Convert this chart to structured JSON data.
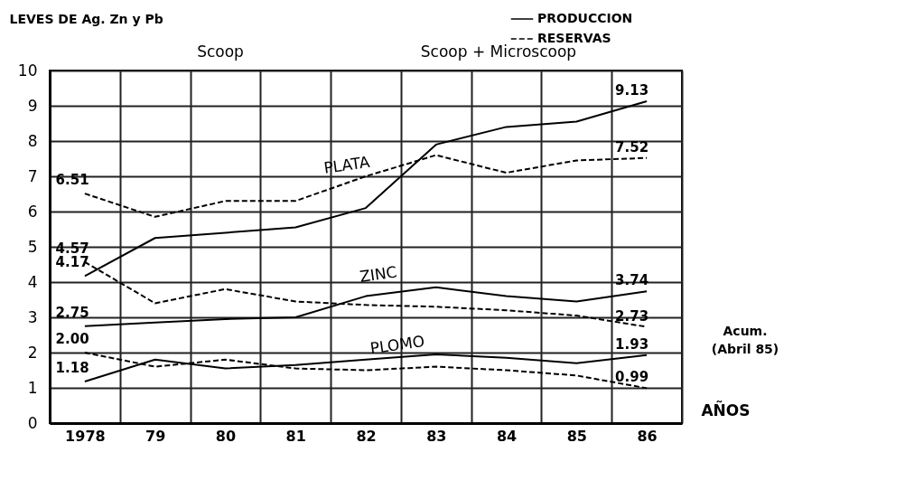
{
  "chart_data": {
    "type": "line",
    "ylabel": "LEVES DE Ag. Zn y Pb",
    "xlabel": "AÑOS",
    "categories": [
      "1978",
      "79",
      "80",
      "81",
      "82",
      "83",
      "84",
      "85",
      "86"
    ],
    "ylim": [
      0,
      10
    ],
    "yticks": [
      0,
      1,
      2,
      3,
      4,
      5,
      6,
      7,
      8,
      9,
      10
    ],
    "grid": true,
    "legend": "top right",
    "marker": "none",
    "series": [
      {
        "name": "PRODUCCION",
        "color": "#000000",
        "line_style": "solid",
        "values": [
          4.17,
          5.25,
          5.4,
          5.55,
          6.1,
          7.9,
          8.4,
          8.55,
          9.13
        ],
        "value_labels": [
          "4.17",
          null,
          null,
          null,
          null,
          null,
          null,
          null,
          "9.13"
        ]
      },
      {
        "name": "RESERVAS",
        "color": "#000000",
        "line_style": "dashed",
        "values": [
          6.51,
          5.85,
          6.3,
          6.3,
          7.0,
          7.6,
          7.1,
          7.45,
          7.52
        ],
        "value_labels": [
          "6.51",
          null,
          null,
          null,
          null,
          null,
          null,
          null,
          "7.52"
        ]
      },
      {
        "color": "#000000",
        "line_style": "solid",
        "values": [
          2.75,
          2.85,
          2.95,
          3.0,
          3.6,
          3.85,
          3.6,
          3.45,
          3.74
        ],
        "value_labels": [
          "2.75",
          null,
          null,
          null,
          null,
          null,
          null,
          null,
          "3.74"
        ]
      },
      {
        "color": "#000000",
        "line_style": "dashed",
        "values": [
          4.57,
          3.4,
          3.8,
          3.45,
          3.35,
          3.3,
          3.2,
          3.05,
          2.73
        ],
        "value_labels": [
          "4.57",
          null,
          null,
          null,
          null,
          null,
          null,
          null,
          "2.73"
        ]
      },
      {
        "color": "#000000",
        "line_style": "solid",
        "values": [
          1.18,
          1.8,
          1.55,
          1.65,
          1.8,
          1.95,
          1.85,
          1.7,
          1.93
        ],
        "value_labels": [
          "1.18",
          null,
          null,
          null,
          null,
          null,
          null,
          null,
          "1.93"
        ]
      },
      {
        "color": "#000000",
        "line_style": "dashed",
        "values": [
          2.0,
          1.6,
          1.8,
          1.55,
          1.5,
          1.6,
          1.5,
          1.35,
          0.99
        ],
        "value_labels": [
          "2.00",
          null,
          null,
          null,
          null,
          null,
          null,
          null,
          "0.99"
        ]
      }
    ],
    "annotations": [
      "Scoop",
      "Scoop + Microscoop",
      "PLATA",
      "ZINC",
      "PLOMO",
      "Acum.\n(Abril 85)"
    ]
  }
}
